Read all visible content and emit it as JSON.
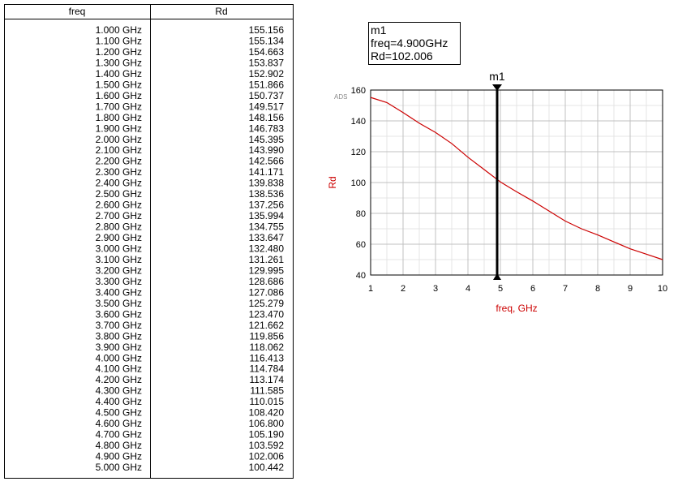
{
  "table": {
    "headers": [
      "freq",
      "Rd"
    ],
    "rows": [
      [
        "1.000 GHz",
        "155.156"
      ],
      [
        "1.100 GHz",
        "155.134"
      ],
      [
        "1.200 GHz",
        "154.663"
      ],
      [
        "1.300 GHz",
        "153.837"
      ],
      [
        "1.400 GHz",
        "152.902"
      ],
      [
        "1.500 GHz",
        "151.866"
      ],
      [
        "1.600 GHz",
        "150.737"
      ],
      [
        "1.700 GHz",
        "149.517"
      ],
      [
        "1.800 GHz",
        "148.156"
      ],
      [
        "1.900 GHz",
        "146.783"
      ],
      [
        "2.000 GHz",
        "145.395"
      ],
      [
        "2.100 GHz",
        "143.990"
      ],
      [
        "2.200 GHz",
        "142.566"
      ],
      [
        "2.300 GHz",
        "141.171"
      ],
      [
        "2.400 GHz",
        "139.838"
      ],
      [
        "2.500 GHz",
        "138.536"
      ],
      [
        "2.600 GHz",
        "137.256"
      ],
      [
        "2.700 GHz",
        "135.994"
      ],
      [
        "2.800 GHz",
        "134.755"
      ],
      [
        "2.900 GHz",
        "133.647"
      ],
      [
        "3.000 GHz",
        "132.480"
      ],
      [
        "3.100 GHz",
        "131.261"
      ],
      [
        "3.200 GHz",
        "129.995"
      ],
      [
        "3.300 GHz",
        "128.686"
      ],
      [
        "3.400 GHz",
        "127.086"
      ],
      [
        "3.500 GHz",
        "125.279"
      ],
      [
        "3.600 GHz",
        "123.470"
      ],
      [
        "3.700 GHz",
        "121.662"
      ],
      [
        "3.800 GHz",
        "119.856"
      ],
      [
        "3.900 GHz",
        "118.062"
      ],
      [
        "4.000 GHz",
        "116.413"
      ],
      [
        "4.100 GHz",
        "114.784"
      ],
      [
        "4.200 GHz",
        "113.174"
      ],
      [
        "4.300 GHz",
        "111.585"
      ],
      [
        "4.400 GHz",
        "110.015"
      ],
      [
        "4.500 GHz",
        "108.420"
      ],
      [
        "4.600 GHz",
        "106.800"
      ],
      [
        "4.700 GHz",
        "105.190"
      ],
      [
        "4.800 GHz",
        "103.592"
      ],
      [
        "4.900 GHz",
        "102.006"
      ],
      [
        "5.000 GHz",
        "100.442"
      ]
    ]
  },
  "chart_data": {
    "type": "line",
    "watermark": "ADS",
    "xlabel": "freq, GHz",
    "ylabel": "Rd",
    "x": [
      1,
      1.5,
      2,
      2.5,
      3,
      3.5,
      4,
      4.5,
      5,
      5.5,
      6,
      6.5,
      7,
      7.5,
      8,
      8.5,
      9,
      9.5,
      10
    ],
    "values": [
      155.2,
      151.9,
      145.4,
      138.5,
      132.5,
      125.3,
      116.4,
      108.4,
      100.4,
      94,
      88,
      81.5,
      75,
      70,
      66,
      61.5,
      57,
      53.5,
      50
    ],
    "color": "#cc0000",
    "xlim": [
      1,
      10
    ],
    "xticks": [
      1,
      2,
      3,
      4,
      5,
      6,
      7,
      8,
      9,
      10
    ],
    "ylim": [
      40,
      160
    ],
    "yticks": [
      40,
      60,
      80,
      100,
      120,
      140,
      160
    ],
    "grid": true,
    "minor_grid": true,
    "marker": {
      "name": "m1",
      "x": 4.9,
      "readout": [
        "m1",
        "freq=4.900GHz",
        "Rd=102.006"
      ]
    }
  }
}
